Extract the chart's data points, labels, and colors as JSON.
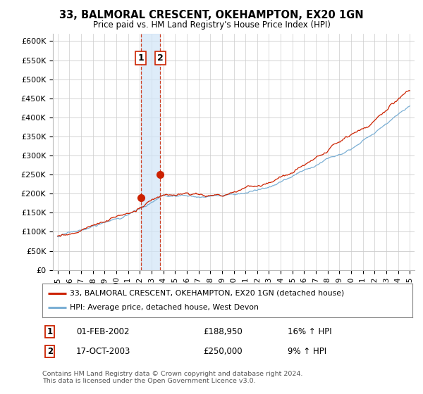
{
  "title": "33, BALMORAL CRESCENT, OKEHAMPTON, EX20 1GN",
  "subtitle": "Price paid vs. HM Land Registry's House Price Index (HPI)",
  "ylabel_ticks": [
    "£0",
    "£50K",
    "£100K",
    "£150K",
    "£200K",
    "£250K",
    "£300K",
    "£350K",
    "£400K",
    "£450K",
    "£500K",
    "£550K",
    "£600K"
  ],
  "ytick_values": [
    0,
    50000,
    100000,
    150000,
    200000,
    250000,
    300000,
    350000,
    400000,
    450000,
    500000,
    550000,
    600000
  ],
  "ylim": [
    0,
    620000
  ],
  "x_start_year": 1995,
  "x_end_year": 2025,
  "hpi_color": "#7bafd4",
  "price_color": "#cc2200",
  "marker1_value": 188950,
  "marker2_value": 250000,
  "vline_color": "#cc2200",
  "shade_color": "#d0e4f7",
  "legend_label_red": "33, BALMORAL CRESCENT, OKEHAMPTON, EX20 1GN (detached house)",
  "legend_label_blue": "HPI: Average price, detached house, West Devon",
  "table_row1": [
    "1",
    "01-FEB-2002",
    "£188,950",
    "16% ↑ HPI"
  ],
  "table_row2": [
    "2",
    "17-OCT-2003",
    "£250,000",
    "9% ↑ HPI"
  ],
  "footnote": "Contains HM Land Registry data © Crown copyright and database right 2024.\nThis data is licensed under the Open Government Licence v3.0.",
  "background_color": "#ffffff",
  "grid_color": "#cccccc"
}
